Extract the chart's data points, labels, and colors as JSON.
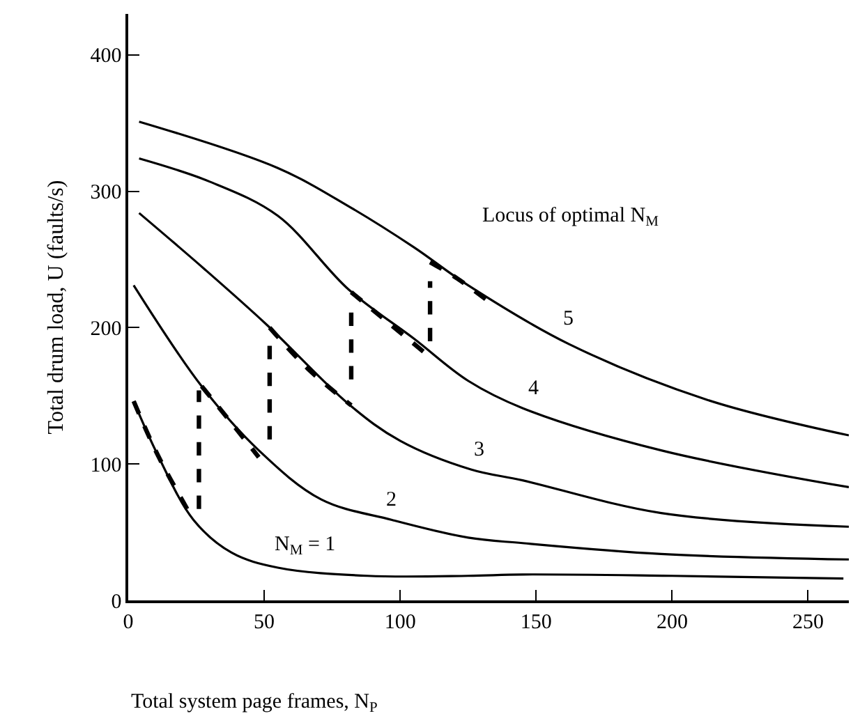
{
  "chart_data": {
    "type": "line",
    "xlabel": "Total system page frames, N$_{P}$",
    "ylabel": "Total drum load, U (faults/s)",
    "xlim": [
      0,
      265
    ],
    "ylim": [
      0,
      430
    ],
    "xticks": [
      0,
      50,
      100,
      150,
      200,
      250
    ],
    "yticks": [
      0,
      100,
      200,
      300,
      400
    ],
    "legend": false,
    "series": [
      {
        "name": "N$_{M}$ = 1",
        "color": "#000000",
        "x": [
          2,
          11,
          24,
          38,
          55,
          88,
          125,
          145,
          200,
          263
        ],
        "values": [
          146,
          106,
          59,
          35,
          24,
          18,
          18,
          19,
          18,
          16
        ]
      },
      {
        "name": "2",
        "color": "#000000",
        "x": [
          2,
          27,
          48,
          71,
          97,
          125,
          145,
          196,
          265
        ],
        "values": [
          231,
          157,
          110,
          74,
          59,
          46,
          42,
          34,
          30
        ]
      },
      {
        "name": "3",
        "color": "#000000",
        "x": [
          4,
          28,
          51,
          81,
          100,
          126,
          145,
          196,
          265
        ],
        "values": [
          284,
          243,
          202,
          144,
          117,
          96,
          88,
          64,
          54
        ]
      },
      {
        "name": "4",
        "color": "#000000",
        "x": [
          4,
          30,
          55,
          81,
          105,
          125,
          145,
          196,
          265
        ],
        "values": [
          324,
          307,
          282,
          228,
          192,
          161,
          141,
          110,
          83
        ]
      },
      {
        "name": "5",
        "color": "#000000",
        "x": [
          4,
          55,
          81,
          105,
          125,
          162,
          213,
          265
        ],
        "values": [
          351,
          317,
          289,
          259,
          231,
          188,
          147,
          121
        ]
      },
      {
        "name": "Locus of optimal N$_{M}$",
        "color": "#000000",
        "line_style": "dashed",
        "x": [
          2,
          11,
          24,
          null,
          26,
          26,
          null,
          27,
          38,
          48,
          null,
          52,
          52,
          null,
          52,
          66,
          82,
          null,
          82,
          82,
          null,
          82,
          96,
          110,
          null,
          111,
          111,
          null,
          111,
          121,
          132
        ],
        "values": [
          146,
          106,
          59,
          null,
          67,
          154,
          null,
          157,
          130,
          105,
          null,
          118,
          187,
          null,
          200,
          170,
          143,
          null,
          162,
          217,
          null,
          226,
          203,
          180,
          null,
          190,
          234,
          null,
          248,
          236,
          220
        ]
      }
    ]
  }
}
